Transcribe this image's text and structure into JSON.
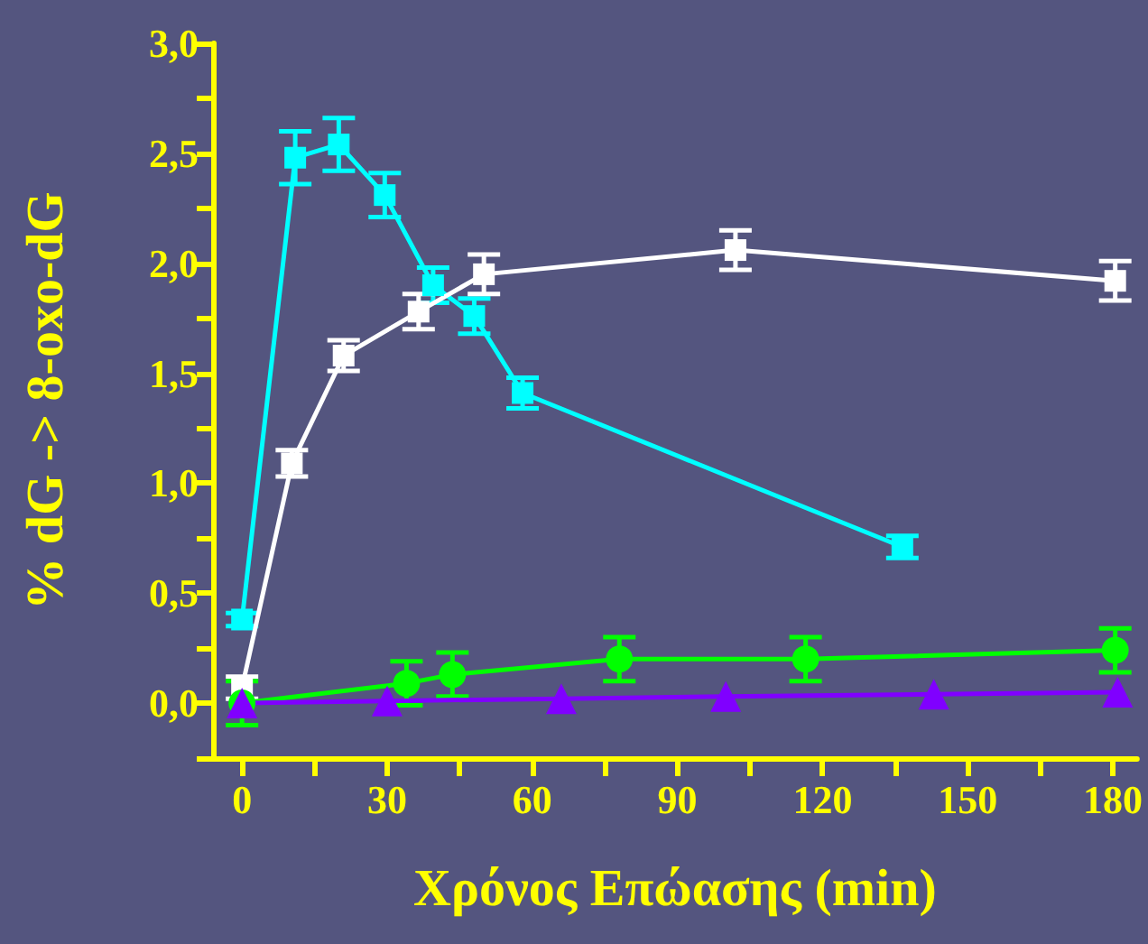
{
  "chart_data": {
    "type": "line",
    "xlabel": "Χρόνος Επώασης (min)",
    "ylabel": "% dG -> 8-oxo-dG",
    "xlim": [
      -6,
      185
    ],
    "xticks": [
      0,
      {
        "value": 15,
        "label": null
      },
      30,
      {
        "value": 45,
        "label": null
      },
      60,
      {
        "value": 75,
        "label": null
      },
      90,
      {
        "value": 105,
        "label": null
      },
      120,
      {
        "value": 135,
        "label": null
      },
      150,
      {
        "value": 165,
        "label": null
      },
      180
    ],
    "ylim": [
      -0.25,
      3
    ],
    "yticks": [
      {
        "value": -0.25,
        "label": null
      },
      {
        "value": 0,
        "label": "0,0"
      },
      {
        "value": 0.25,
        "label": null
      },
      {
        "value": 0.5,
        "label": "0,5"
      },
      {
        "value": 0.75,
        "label": null
      },
      {
        "value": 1,
        "label": "1,0"
      },
      {
        "value": 1.25,
        "label": null
      },
      {
        "value": 1.5,
        "label": "1,5"
      },
      {
        "value": 1.75,
        "label": null
      },
      {
        "value": 2,
        "label": "2,0"
      },
      {
        "value": 2.25,
        "label": null
      },
      {
        "value": 2.5,
        "label": "2,5"
      },
      {
        "value": 2.75,
        "label": null
      },
      {
        "value": 3,
        "label": "3,0"
      }
    ],
    "grid": false,
    "line_style": "solid",
    "series": [
      {
        "color": "#00ffff",
        "marker": "square",
        "x": [
          0,
          11,
          20,
          29.5,
          39.5,
          48,
          58,
          136.5
        ],
        "values": [
          0.38,
          2.48,
          2.54,
          2.31,
          1.9,
          1.76,
          1.41,
          0.71
        ],
        "errors": [
          0.03,
          0.12,
          0.12,
          0.1,
          0.08,
          0.08,
          0.07,
          0.05
        ]
      },
      {
        "color": "#ffffff",
        "marker": "square",
        "x": [
          0,
          10.3,
          21,
          36.5,
          50,
          102,
          180.5
        ],
        "values": [
          0.07,
          1.09,
          1.58,
          1.78,
          1.95,
          2.06,
          1.92
        ],
        "errors": [
          0.05,
          0.06,
          0.07,
          0.08,
          0.09,
          0.09,
          0.09
        ]
      },
      {
        "color": "#00ff00",
        "marker": "circle",
        "x": [
          0,
          34,
          43.5,
          78,
          116.5,
          180.5
        ],
        "values": [
          0,
          0.09,
          0.13,
          0.2,
          0.2,
          0.24
        ],
        "errors": [
          0.1,
          0.1,
          0.1,
          0.1,
          0.1,
          0.1
        ]
      },
      {
        "color": "#8000ff",
        "marker": "triangle",
        "x": [
          0,
          30,
          66,
          100,
          143,
          181
        ],
        "values": [
          0,
          0.01,
          0.02,
          0.03,
          0.04,
          0.05
        ]
      }
    ]
  }
}
